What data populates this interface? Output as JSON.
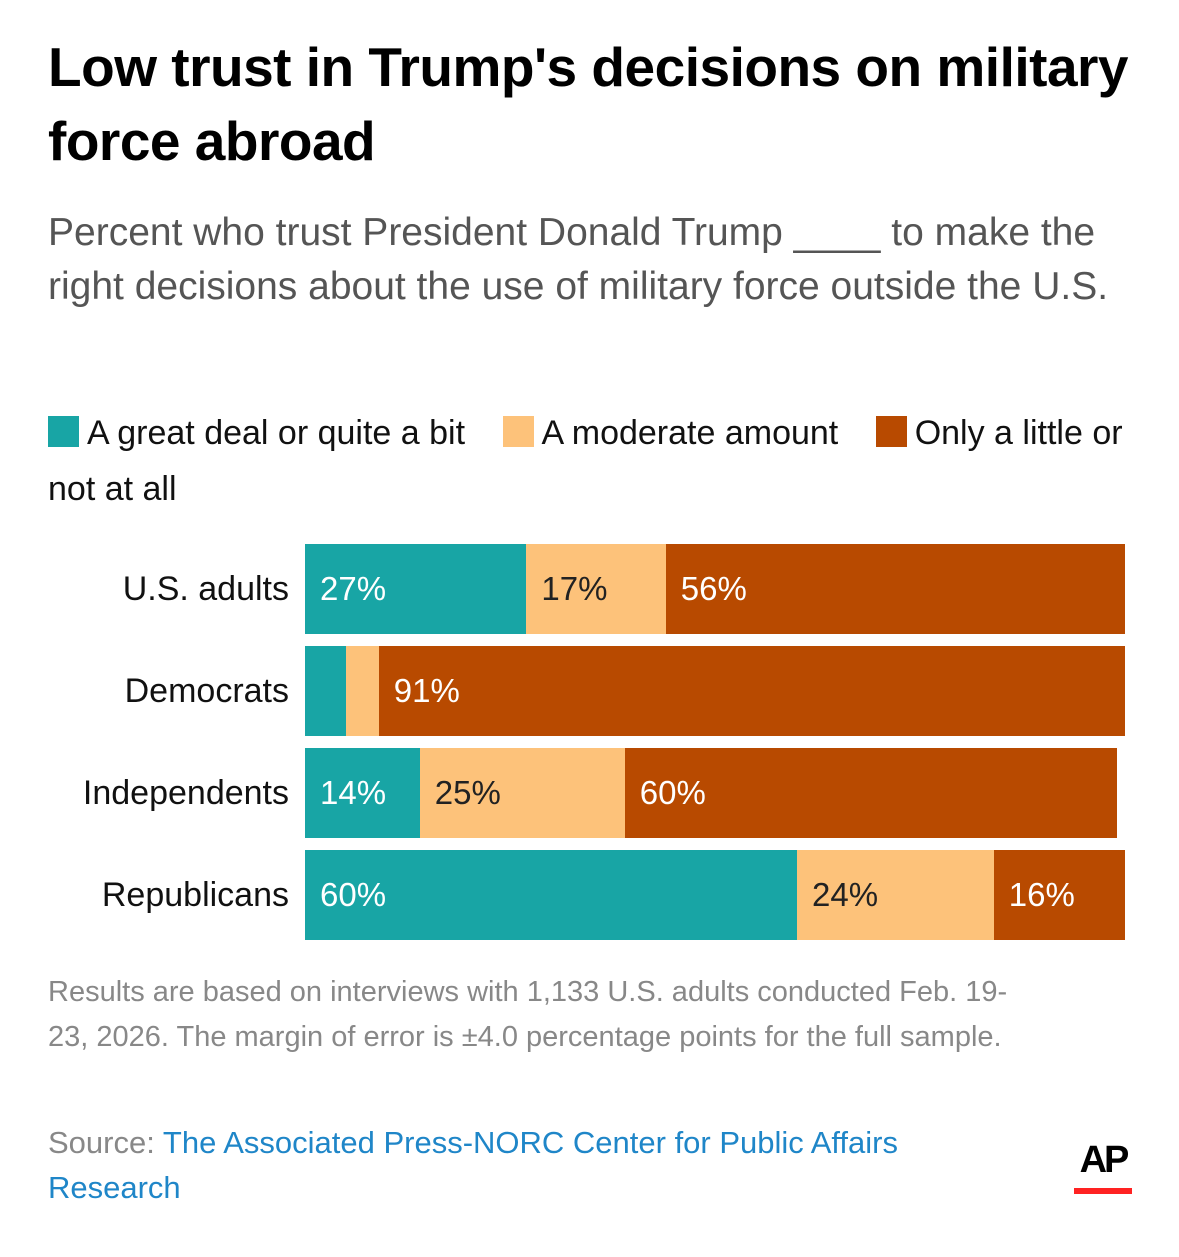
{
  "title": "Low trust in Trump's decisions on military force abroad",
  "subtitle": "Percent who trust President Donald Trump ____ to make the right decisions about the use of military force outside the U.S.",
  "note": "Results are based on interviews with 1,133 U.S. adults conducted Feb. 19-23, 2026. The margin of error is ±4.0 percentage points for the full sample.",
  "source_prefix": "Source: ",
  "source_link": "The Associated Press-NORC Center for Public Affairs Research",
  "logo_text": "AP",
  "chart_data": {
    "type": "bar",
    "orientation": "horizontal",
    "stacked": true,
    "categories": [
      "U.S. adults",
      "Democrats",
      "Independents",
      "Republicans"
    ],
    "series": [
      {
        "name": "A great deal or quite a bit",
        "color": "#18a5a5",
        "values": [
          27,
          5,
          14,
          60
        ],
        "labels": [
          "27%",
          "",
          "14%",
          "60%"
        ],
        "label_color": "#ffffff"
      },
      {
        "name": "A moderate amount",
        "color": "#fdc27a",
        "values": [
          17,
          4,
          25,
          24
        ],
        "labels": [
          "17%",
          "",
          "25%",
          "24%"
        ],
        "label_color": "#222222"
      },
      {
        "name": "Only a little or not at all",
        "color": "#b84a00",
        "values": [
          56,
          91,
          60,
          16
        ],
        "labels": [
          "56%",
          "91%",
          "60%",
          "16%"
        ],
        "label_color": "#ffffff"
      }
    ],
    "xlim": [
      0,
      100
    ],
    "grid": false,
    "legend": "top"
  }
}
